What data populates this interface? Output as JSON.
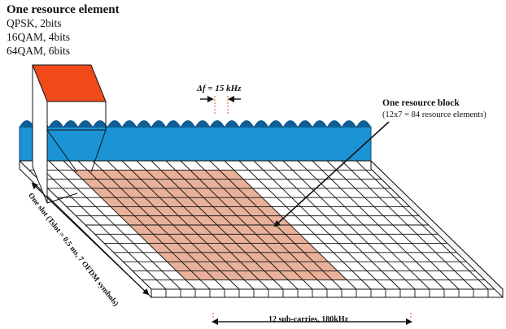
{
  "resource_element": {
    "title": "One resource element",
    "lines": [
      "QPSK, 2bits",
      "16QAM, 4bits",
      "64QAM, 6bits"
    ]
  },
  "subcarrier_spacing": {
    "label": "Δf = 15 kHz"
  },
  "resource_block": {
    "title": "One resource block",
    "detail": "(12x7 = 84 resource elements)"
  },
  "slot_axis": {
    "label": "One slot (Tslot = 0.5 ms, 7 OFDM symbols)"
  },
  "subcarrier_axis": {
    "label": "12 sub-carries, 180kHz"
  },
  "colors": {
    "subcarrier_band": "#1b93d4",
    "subcarrier_band_dark": "#0d5f95",
    "resource_block_fill": "#e9b199",
    "resource_element_block": "#f04a1a",
    "grid_line": "#111111"
  }
}
